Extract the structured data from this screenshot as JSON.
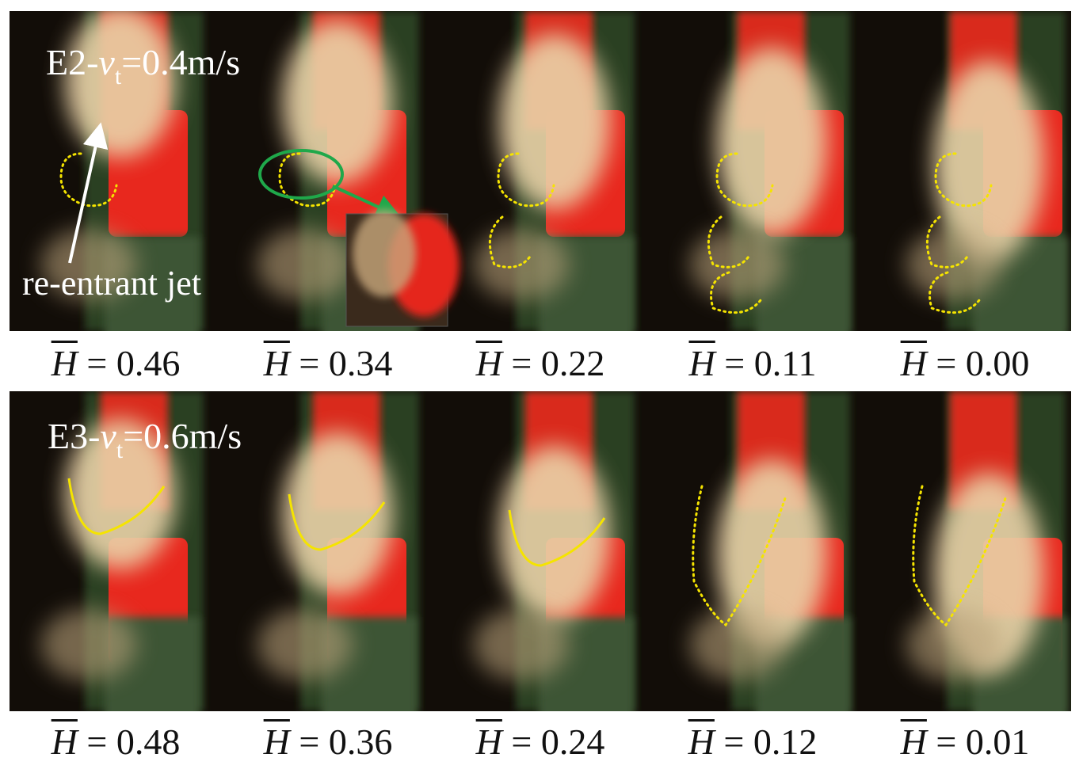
{
  "rows": [
    {
      "label": {
        "prefix": "E2-",
        "variable": "v",
        "subscript": "t",
        "suffix": "=0.4m/s"
      },
      "annotation": "re-entrant jet",
      "captions": [
        {
          "symbol": "H",
          "relation": "=",
          "value": "0.46"
        },
        {
          "symbol": "H",
          "relation": "=",
          "value": "0.34"
        },
        {
          "symbol": "H",
          "relation": "=",
          "value": "0.22"
        },
        {
          "symbol": "H",
          "relation": "=",
          "value": "0.11"
        },
        {
          "symbol": "H",
          "relation": "=",
          "value": "0.00"
        }
      ]
    },
    {
      "label": {
        "prefix": "E3-",
        "variable": "v",
        "subscript": "t",
        "suffix": "=0.6m/s"
      },
      "captions": [
        {
          "symbol": "H",
          "relation": "=",
          "value": "0.48"
        },
        {
          "symbol": "H",
          "relation": "=",
          "value": "0.36"
        },
        {
          "symbol": "H",
          "relation": "=",
          "value": "0.24"
        },
        {
          "symbol": "H",
          "relation": "=",
          "value": "0.12"
        },
        {
          "symbol": "H",
          "relation": "=",
          "value": "0.01"
        }
      ]
    }
  ]
}
